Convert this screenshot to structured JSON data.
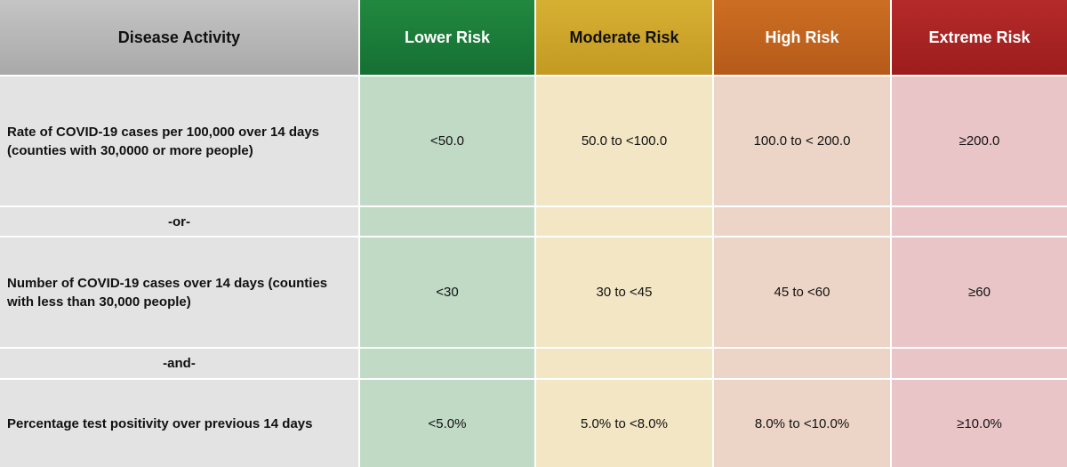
{
  "table": {
    "header": [
      "Disease Activity",
      "Lower Risk",
      "Moderate Risk",
      "High Risk",
      "Extreme Risk"
    ],
    "rows": [
      {
        "cells": [
          "Rate of COVID-19 cases per 100,000 over 14 days (counties with 30,0000 or more people)",
          "<50.0",
          "50.0 to <100.0",
          "100.0 to < 200.0",
          "≥200.0"
        ]
      },
      {
        "separator": "-or-"
      },
      {
        "cells": [
          "Number of COVID-19 cases over 14 days (counties with less than 30,000 people)",
          "<30",
          "30 to <45",
          "45 to <60",
          "≥60"
        ]
      },
      {
        "separator": "-and-"
      },
      {
        "cells": [
          "Percentage test positivity over previous 14 days",
          "<5.0%",
          "5.0% to <8.0%",
          "8.0% to <10.0%",
          "≥10.0%"
        ]
      }
    ]
  }
}
